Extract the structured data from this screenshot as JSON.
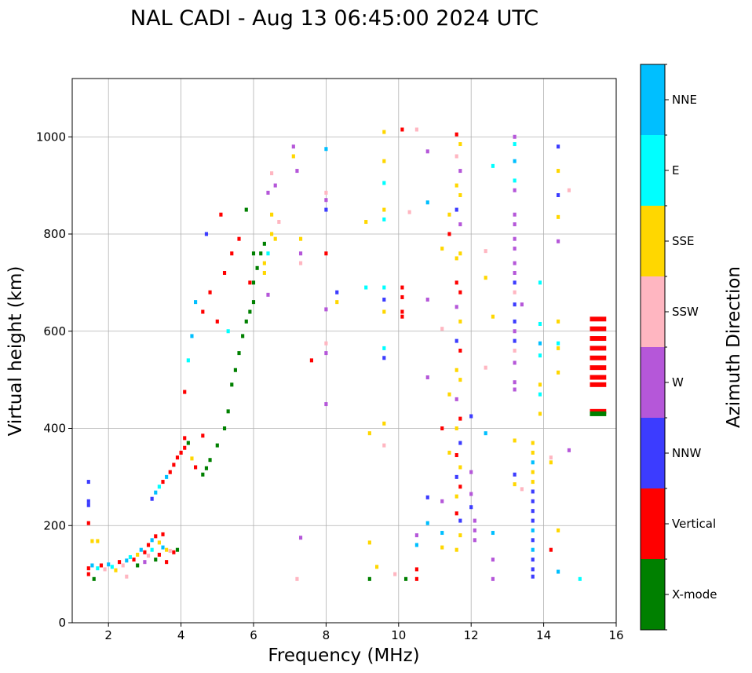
{
  "chart_data": {
    "type": "scatter",
    "title": "NAL CADI - Aug 13 06:45:00 2024 UTC",
    "xlabel": "Frequency (MHz)",
    "ylabel": "Virtual height (km)",
    "xlim": [
      1.0,
      16.0
    ],
    "ylim": [
      0,
      1120
    ],
    "xticks": [
      2,
      4,
      6,
      8,
      10,
      12,
      14,
      16
    ],
    "yticks": [
      0,
      200,
      400,
      600,
      800,
      1000
    ],
    "grid": true,
    "colorbar": {
      "title": "Azimuth Direction",
      "categories": [
        {
          "label": "X-mode",
          "color": "#008000"
        },
        {
          "label": "Vertical",
          "color": "#ff0000"
        },
        {
          "label": "NNW",
          "color": "#3c3cff"
        },
        {
          "label": "W",
          "color": "#b557d9"
        },
        {
          "label": "SSW",
          "color": "#ffb6c1"
        },
        {
          "label": "SSE",
          "color": "#ffd700"
        },
        {
          "label": "E",
          "color": "#00ffff"
        },
        {
          "label": "NNE",
          "color": "#00bfff"
        }
      ]
    },
    "points": [
      [
        1.45,
        290,
        "NNW"
      ],
      [
        1.45,
        250,
        "NNW"
      ],
      [
        1.45,
        242,
        "NNW"
      ],
      [
        1.45,
        205,
        "Vertical"
      ],
      [
        1.45,
        112,
        "Vertical"
      ],
      [
        1.45,
        100,
        "Vertical"
      ],
      [
        1.55,
        168,
        "SSE"
      ],
      [
        1.55,
        118,
        "NNE"
      ],
      [
        1.6,
        90,
        "X-mode"
      ],
      [
        1.7,
        168,
        "SSE"
      ],
      [
        1.7,
        112,
        "E"
      ],
      [
        1.8,
        118,
        "Vertical"
      ],
      [
        1.9,
        110,
        "SSW"
      ],
      [
        2.0,
        120,
        "NNE"
      ],
      [
        2.1,
        115,
        "E"
      ],
      [
        2.2,
        108,
        "SSE"
      ],
      [
        2.3,
        125,
        "Vertical"
      ],
      [
        2.4,
        118,
        "SSW"
      ],
      [
        2.5,
        128,
        "NNE"
      ],
      [
        2.5,
        95,
        "SSW"
      ],
      [
        2.6,
        135,
        "E"
      ],
      [
        2.7,
        130,
        "Vertical"
      ],
      [
        2.8,
        140,
        "SSE"
      ],
      [
        2.8,
        118,
        "X-mode"
      ],
      [
        2.9,
        150,
        "NNE"
      ],
      [
        3.0,
        145,
        "Vertical"
      ],
      [
        3.0,
        125,
        "W"
      ],
      [
        3.1,
        160,
        "Vertical"
      ],
      [
        3.1,
        138,
        "SSW"
      ],
      [
        3.2,
        170,
        "NNE"
      ],
      [
        3.2,
        150,
        "E"
      ],
      [
        3.3,
        178,
        "Vertical"
      ],
      [
        3.3,
        130,
        "X-mode"
      ],
      [
        3.4,
        165,
        "SSE"
      ],
      [
        3.4,
        140,
        "Vertical"
      ],
      [
        3.5,
        182,
        "Vertical"
      ],
      [
        3.5,
        155,
        "NNE"
      ],
      [
        3.6,
        150,
        "SSE"
      ],
      [
        3.6,
        125,
        "Vertical"
      ],
      [
        3.7,
        148,
        "SSW"
      ],
      [
        3.8,
        145,
        "Vertical"
      ],
      [
        3.9,
        150,
        "X-mode"
      ],
      [
        3.2,
        255,
        "NNW"
      ],
      [
        3.3,
        268,
        "NNE"
      ],
      [
        3.4,
        280,
        "E"
      ],
      [
        3.5,
        290,
        "Vertical"
      ],
      [
        3.6,
        300,
        "NNE"
      ],
      [
        3.7,
        310,
        "Vertical"
      ],
      [
        3.8,
        325,
        "Vertical"
      ],
      [
        3.9,
        340,
        "Vertical"
      ],
      [
        4.0,
        350,
        "Vertical"
      ],
      [
        4.1,
        360,
        "Vertical"
      ],
      [
        4.1,
        380,
        "Vertical"
      ],
      [
        4.2,
        370,
        "X-mode"
      ],
      [
        4.3,
        338,
        "SSE"
      ],
      [
        4.4,
        320,
        "Vertical"
      ],
      [
        4.6,
        305,
        "X-mode"
      ],
      [
        4.7,
        318,
        "X-mode"
      ],
      [
        4.8,
        335,
        "X-mode"
      ],
      [
        4.6,
        385,
        "Vertical"
      ],
      [
        5.0,
        365,
        "X-mode"
      ],
      [
        5.2,
        400,
        "X-mode"
      ],
      [
        5.3,
        435,
        "X-mode"
      ],
      [
        5.4,
        490,
        "X-mode"
      ],
      [
        5.5,
        520,
        "X-mode"
      ],
      [
        5.6,
        555,
        "X-mode"
      ],
      [
        5.7,
        590,
        "X-mode"
      ],
      [
        5.8,
        620,
        "X-mode"
      ],
      [
        5.9,
        640,
        "X-mode"
      ],
      [
        6.0,
        660,
        "X-mode"
      ],
      [
        6.0,
        700,
        "X-mode"
      ],
      [
        6.1,
        730,
        "X-mode"
      ],
      [
        6.2,
        760,
        "X-mode"
      ],
      [
        6.3,
        780,
        "X-mode"
      ],
      [
        5.8,
        850,
        "X-mode"
      ],
      [
        6.0,
        760,
        "X-mode"
      ],
      [
        4.1,
        475,
        "Vertical"
      ],
      [
        4.2,
        540,
        "E"
      ],
      [
        4.3,
        590,
        "NNE"
      ],
      [
        4.4,
        660,
        "NNE"
      ],
      [
        4.6,
        640,
        "Vertical"
      ],
      [
        4.8,
        680,
        "Vertical"
      ],
      [
        5.0,
        620,
        "Vertical"
      ],
      [
        5.2,
        720,
        "Vertical"
      ],
      [
        5.4,
        760,
        "Vertical"
      ],
      [
        5.6,
        790,
        "Vertical"
      ],
      [
        5.1,
        840,
        "Vertical"
      ],
      [
        4.7,
        800,
        "NNW"
      ],
      [
        5.3,
        600,
        "E"
      ],
      [
        5.9,
        700,
        "Vertical"
      ],
      [
        6.3,
        720,
        "SSE"
      ],
      [
        6.3,
        740,
        "SSE"
      ],
      [
        6.4,
        760,
        "E"
      ],
      [
        6.5,
        800,
        "SSE"
      ],
      [
        6.5,
        840,
        "SSE"
      ],
      [
        6.6,
        790,
        "SSE"
      ],
      [
        6.7,
        825,
        "SSW"
      ],
      [
        6.5,
        925,
        "SSW"
      ],
      [
        6.6,
        900,
        "W"
      ],
      [
        6.4,
        885,
        "W"
      ],
      [
        6.4,
        675,
        "W"
      ],
      [
        7.1,
        980,
        "W"
      ],
      [
        7.1,
        960,
        "SSE"
      ],
      [
        7.2,
        930,
        "W"
      ],
      [
        7.3,
        790,
        "SSE"
      ],
      [
        7.3,
        760,
        "W"
      ],
      [
        7.3,
        740,
        "SSW"
      ],
      [
        7.3,
        175,
        "W"
      ],
      [
        7.2,
        90,
        "SSW"
      ],
      [
        7.6,
        540,
        "Vertical"
      ],
      [
        8.0,
        975,
        "NNE"
      ],
      [
        8.0,
        885,
        "SSW"
      ],
      [
        8.0,
        870,
        "W"
      ],
      [
        8.0,
        850,
        "NNW"
      ],
      [
        8.0,
        760,
        "Vertical"
      ],
      [
        8.0,
        645,
        "W"
      ],
      [
        8.0,
        575,
        "SSW"
      ],
      [
        8.0,
        555,
        "W"
      ],
      [
        8.0,
        450,
        "W"
      ],
      [
        8.3,
        680,
        "NNW"
      ],
      [
        8.3,
        660,
        "SSE"
      ],
      [
        9.1,
        825,
        "SSE"
      ],
      [
        9.1,
        690,
        "E"
      ],
      [
        9.2,
        390,
        "SSE"
      ],
      [
        9.2,
        165,
        "SSE"
      ],
      [
        9.2,
        90,
        "X-mode"
      ],
      [
        9.4,
        115,
        "SSE"
      ],
      [
        9.6,
        1010,
        "SSE"
      ],
      [
        9.6,
        950,
        "SSE"
      ],
      [
        9.6,
        905,
        "E"
      ],
      [
        9.6,
        850,
        "SSE"
      ],
      [
        9.6,
        830,
        "E"
      ],
      [
        9.6,
        690,
        "E"
      ],
      [
        9.6,
        665,
        "NNW"
      ],
      [
        9.6,
        640,
        "SSE"
      ],
      [
        9.6,
        565,
        "E"
      ],
      [
        9.6,
        545,
        "NNW"
      ],
      [
        9.6,
        410,
        "SSE"
      ],
      [
        9.6,
        365,
        "SSW"
      ],
      [
        9.9,
        100,
        "SSW"
      ],
      [
        10.1,
        1015,
        "Vertical"
      ],
      [
        10.1,
        690,
        "Vertical"
      ],
      [
        10.1,
        670,
        "Vertical"
      ],
      [
        10.1,
        640,
        "Vertical"
      ],
      [
        10.1,
        630,
        "Vertical"
      ],
      [
        10.2,
        90,
        "X-mode"
      ],
      [
        10.3,
        845,
        "SSW"
      ],
      [
        10.5,
        1015,
        "SSW"
      ],
      [
        10.5,
        180,
        "W"
      ],
      [
        10.5,
        160,
        "NNE"
      ],
      [
        10.5,
        110,
        "Vertical"
      ],
      [
        10.5,
        90,
        "Vertical"
      ],
      [
        10.8,
        970,
        "W"
      ],
      [
        10.8,
        865,
        "NNE"
      ],
      [
        10.8,
        665,
        "W"
      ],
      [
        10.8,
        505,
        "W"
      ],
      [
        10.8,
        258,
        "NNW"
      ],
      [
        10.8,
        205,
        "NNE"
      ],
      [
        11.2,
        770,
        "SSE"
      ],
      [
        11.2,
        605,
        "SSW"
      ],
      [
        11.2,
        400,
        "Vertical"
      ],
      [
        11.2,
        250,
        "W"
      ],
      [
        11.2,
        185,
        "NNE"
      ],
      [
        11.2,
        155,
        "SSE"
      ],
      [
        11.4,
        840,
        "SSE"
      ],
      [
        11.4,
        800,
        "Vertical"
      ],
      [
        11.4,
        470,
        "SSE"
      ],
      [
        11.4,
        350,
        "SSE"
      ],
      [
        11.6,
        1005,
        "Vertical"
      ],
      [
        11.6,
        960,
        "SSW"
      ],
      [
        11.6,
        900,
        "SSE"
      ],
      [
        11.6,
        850,
        "NNW"
      ],
      [
        11.6,
        750,
        "SSE"
      ],
      [
        11.6,
        700,
        "Vertical"
      ],
      [
        11.6,
        650,
        "W"
      ],
      [
        11.6,
        580,
        "NNW"
      ],
      [
        11.6,
        520,
        "SSE"
      ],
      [
        11.6,
        460,
        "W"
      ],
      [
        11.6,
        400,
        "SSE"
      ],
      [
        11.6,
        345,
        "Vertical"
      ],
      [
        11.6,
        300,
        "NNW"
      ],
      [
        11.6,
        260,
        "SSE"
      ],
      [
        11.6,
        225,
        "Vertical"
      ],
      [
        11.6,
        150,
        "SSE"
      ],
      [
        11.7,
        985,
        "SSE"
      ],
      [
        11.7,
        930,
        "W"
      ],
      [
        11.7,
        880,
        "SSE"
      ],
      [
        11.7,
        820,
        "W"
      ],
      [
        11.7,
        760,
        "SSE"
      ],
      [
        11.7,
        680,
        "Vertical"
      ],
      [
        11.7,
        620,
        "SSE"
      ],
      [
        11.7,
        560,
        "Vertical"
      ],
      [
        11.7,
        500,
        "SSE"
      ],
      [
        11.7,
        420,
        "Vertical"
      ],
      [
        11.7,
        370,
        "NNW"
      ],
      [
        11.7,
        320,
        "SSE"
      ],
      [
        11.7,
        280,
        "Vertical"
      ],
      [
        11.7,
        210,
        "NNW"
      ],
      [
        11.7,
        180,
        "SSE"
      ],
      [
        12.0,
        425,
        "NNW"
      ],
      [
        12.0,
        310,
        "W"
      ],
      [
        12.0,
        265,
        "W"
      ],
      [
        12.0,
        238,
        "NNW"
      ],
      [
        12.1,
        210,
        "W"
      ],
      [
        12.1,
        190,
        "W"
      ],
      [
        12.1,
        170,
        "W"
      ],
      [
        12.4,
        765,
        "SSW"
      ],
      [
        12.4,
        710,
        "SSE"
      ],
      [
        12.4,
        525,
        "SSW"
      ],
      [
        12.4,
        390,
        "NNE"
      ],
      [
        12.6,
        940,
        "E"
      ],
      [
        12.6,
        630,
        "SSE"
      ],
      [
        12.6,
        185,
        "NNE"
      ],
      [
        12.6,
        130,
        "W"
      ],
      [
        12.6,
        90,
        "W"
      ],
      [
        13.2,
        1000,
        "W"
      ],
      [
        13.2,
        985,
        "E"
      ],
      [
        13.2,
        950,
        "NNE"
      ],
      [
        13.2,
        910,
        "E"
      ],
      [
        13.2,
        890,
        "W"
      ],
      [
        13.2,
        840,
        "W"
      ],
      [
        13.2,
        820,
        "W"
      ],
      [
        13.2,
        790,
        "W"
      ],
      [
        13.2,
        770,
        "W"
      ],
      [
        13.2,
        740,
        "W"
      ],
      [
        13.2,
        720,
        "W"
      ],
      [
        13.2,
        700,
        "NNW"
      ],
      [
        13.2,
        680,
        "SSW"
      ],
      [
        13.2,
        655,
        "NNW"
      ],
      [
        13.2,
        620,
        "NNW"
      ],
      [
        13.2,
        600,
        "W"
      ],
      [
        13.2,
        580,
        "NNW"
      ],
      [
        13.2,
        560,
        "SSW"
      ],
      [
        13.2,
        535,
        "W"
      ],
      [
        13.2,
        495,
        "W"
      ],
      [
        13.2,
        480,
        "W"
      ],
      [
        13.2,
        375,
        "SSE"
      ],
      [
        13.2,
        305,
        "NNW"
      ],
      [
        13.2,
        285,
        "SSE"
      ],
      [
        13.4,
        655,
        "W"
      ],
      [
        13.4,
        275,
        "SSW"
      ],
      [
        13.7,
        370,
        "SSE"
      ],
      [
        13.7,
        350,
        "SSE"
      ],
      [
        13.7,
        330,
        "NNE"
      ],
      [
        13.7,
        310,
        "SSE"
      ],
      [
        13.7,
        290,
        "SSE"
      ],
      [
        13.7,
        270,
        "NNW"
      ],
      [
        13.7,
        250,
        "NNW"
      ],
      [
        13.7,
        230,
        "NNW"
      ],
      [
        13.7,
        210,
        "NNW"
      ],
      [
        13.7,
        190,
        "NNE"
      ],
      [
        13.7,
        170,
        "NNW"
      ],
      [
        13.7,
        150,
        "NNE"
      ],
      [
        13.7,
        130,
        "NNW"
      ],
      [
        13.7,
        110,
        "NNW"
      ],
      [
        13.7,
        95,
        "NNW"
      ],
      [
        13.9,
        700,
        "E"
      ],
      [
        13.9,
        615,
        "E"
      ],
      [
        13.9,
        575,
        "NNE"
      ],
      [
        13.9,
        550,
        "E"
      ],
      [
        13.9,
        490,
        "SSE"
      ],
      [
        13.9,
        470,
        "E"
      ],
      [
        13.9,
        430,
        "SSE"
      ],
      [
        14.2,
        340,
        "SSW"
      ],
      [
        14.2,
        330,
        "SSE"
      ],
      [
        14.2,
        150,
        "Vertical"
      ],
      [
        14.4,
        980,
        "NNW"
      ],
      [
        14.4,
        930,
        "SSE"
      ],
      [
        14.4,
        880,
        "NNW"
      ],
      [
        14.4,
        835,
        "SSE"
      ],
      [
        14.4,
        785,
        "W"
      ],
      [
        14.4,
        620,
        "SSE"
      ],
      [
        14.4,
        575,
        "E"
      ],
      [
        14.4,
        565,
        "SSE"
      ],
      [
        14.4,
        515,
        "SSE"
      ],
      [
        14.4,
        190,
        "SSE"
      ],
      [
        14.4,
        105,
        "NNE"
      ],
      [
        14.7,
        890,
        "SSW"
      ],
      [
        14.7,
        355,
        "W"
      ],
      [
        15.0,
        90,
        "E"
      ],
      [
        15.5,
        625,
        "Vertical"
      ],
      [
        15.5,
        605,
        "Vertical"
      ],
      [
        15.5,
        585,
        "Vertical"
      ],
      [
        15.5,
        565,
        "Vertical"
      ],
      [
        15.5,
        545,
        "Vertical"
      ],
      [
        15.5,
        525,
        "Vertical"
      ],
      [
        15.5,
        505,
        "Vertical"
      ],
      [
        15.5,
        490,
        "Vertical"
      ],
      [
        15.5,
        435,
        "Vertical"
      ],
      [
        15.5,
        430,
        "X-mode"
      ]
    ]
  }
}
